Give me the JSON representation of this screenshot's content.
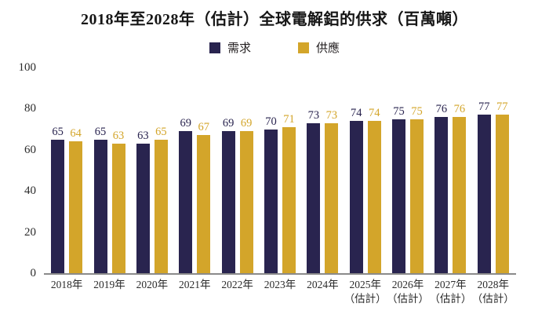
{
  "title": "2018年至2028年（估計）全球電解鋁的供求（百萬噸）",
  "legend": {
    "items": [
      {
        "label": "需求",
        "color": "#29244f"
      },
      {
        "label": "供應",
        "color": "#d3a52a"
      }
    ]
  },
  "chart_data": {
    "type": "bar",
    "title": "2018年至2028年（估計）全球電解鋁的供求（百萬噸）",
    "categories": [
      "2018年",
      "2019年",
      "2020年",
      "2021年",
      "2022年",
      "2023年",
      "2024年",
      "2025年",
      "2026年",
      "2027年",
      "2028年"
    ],
    "category_sublabels": [
      "",
      "",
      "",
      "",
      "",
      "",
      "",
      "（估計）",
      "（估計）",
      "（估計）",
      "（估計）"
    ],
    "series": [
      {
        "name": "需求",
        "color": "#29244f",
        "values": [
          65,
          65,
          63,
          69,
          69,
          70,
          73,
          74,
          75,
          76,
          77
        ]
      },
      {
        "name": "供應",
        "color": "#d3a52a",
        "values": [
          64,
          63,
          65,
          67,
          69,
          71,
          73,
          74,
          75,
          76,
          77
        ]
      }
    ],
    "xlabel": "",
    "ylabel": "",
    "ylim": [
      0,
      100
    ],
    "yticks": [
      0,
      20,
      40,
      60,
      80,
      100
    ],
    "grid": false,
    "legend_position": "top",
    "axis_line_color": "#8a8a8a"
  }
}
